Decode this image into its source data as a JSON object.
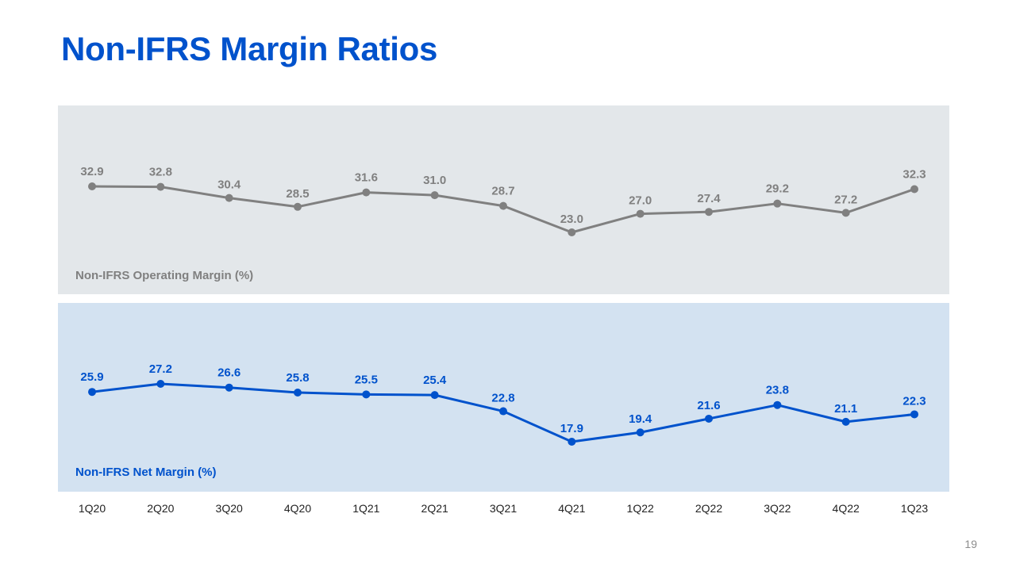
{
  "page": {
    "title": "Non-IFRS Margin Ratios",
    "page_number": "19"
  },
  "colors": {
    "title": "#0052CC",
    "operating": "#808080",
    "net": "#0052CC"
  },
  "chart_data": {
    "type": "line",
    "categories": [
      "1Q20",
      "2Q20",
      "3Q20",
      "4Q20",
      "1Q21",
      "2Q21",
      "3Q21",
      "4Q21",
      "1Q22",
      "2Q22",
      "3Q22",
      "4Q22",
      "1Q23"
    ],
    "series": [
      {
        "name": "Non-IFRS Operating Margin (%)",
        "values": [
          32.9,
          32.8,
          30.4,
          28.5,
          31.6,
          31.0,
          28.7,
          23.0,
          27.0,
          27.4,
          29.2,
          27.2,
          32.3
        ],
        "color": "#808080"
      },
      {
        "name": "Non-IFRS Net Margin (%)",
        "values": [
          25.9,
          27.2,
          26.6,
          25.8,
          25.5,
          25.4,
          22.8,
          17.9,
          19.4,
          21.6,
          23.8,
          21.1,
          22.3
        ],
        "color": "#0052CC"
      }
    ],
    "title": "Non-IFRS Margin Ratios",
    "xlabel": "",
    "ylabel": "",
    "ylim": [
      0,
      40
    ],
    "grid": false
  }
}
